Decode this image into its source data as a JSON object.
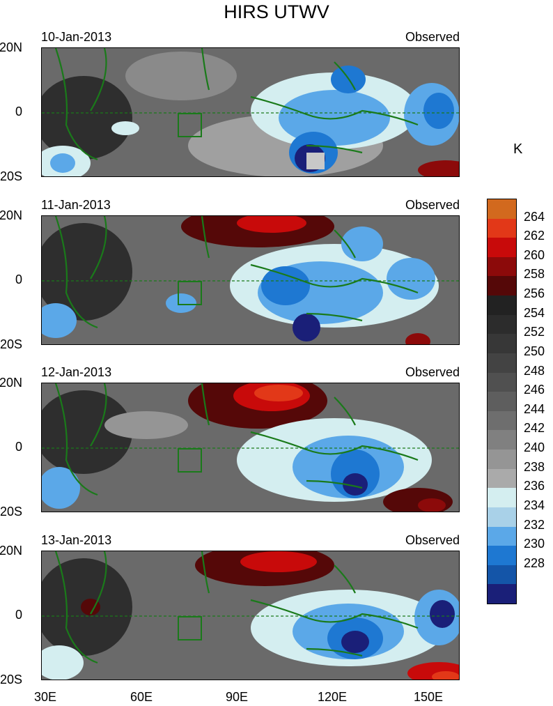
{
  "title": "HIRS UTWV",
  "units": "K",
  "panels": [
    {
      "date": "10-Jan-2013",
      "tag": "Observed"
    },
    {
      "date": "11-Jan-2013",
      "tag": "Observed"
    },
    {
      "date": "12-Jan-2013",
      "tag": "Observed"
    },
    {
      "date": "13-Jan-2013",
      "tag": "Observed"
    }
  ],
  "lat_labels": [
    "20N",
    "0",
    "20S"
  ],
  "lon_labels": [
    "30E",
    "60E",
    "90E",
    "120E",
    "150E"
  ],
  "colorbar": {
    "levels": [
      "264",
      "262",
      "260",
      "258",
      "256",
      "254",
      "252",
      "250",
      "248",
      "246",
      "244",
      "242",
      "240",
      "238",
      "236",
      "234",
      "232",
      "230",
      "228"
    ],
    "colors": [
      "#d2691e",
      "#e23818",
      "#c80a0a",
      "#8c0a0a",
      "#550808",
      "#222222",
      "#2c2c2c",
      "#373737",
      "#434343",
      "#505050",
      "#5e5e5e",
      "#6e6e6e",
      "#808080",
      "#959595",
      "#aaaaaa",
      "#d4eef0",
      "#a9d1e8",
      "#5ba8e8",
      "#1e78d2",
      "#1455a8",
      "#1a1f78"
    ]
  }
}
